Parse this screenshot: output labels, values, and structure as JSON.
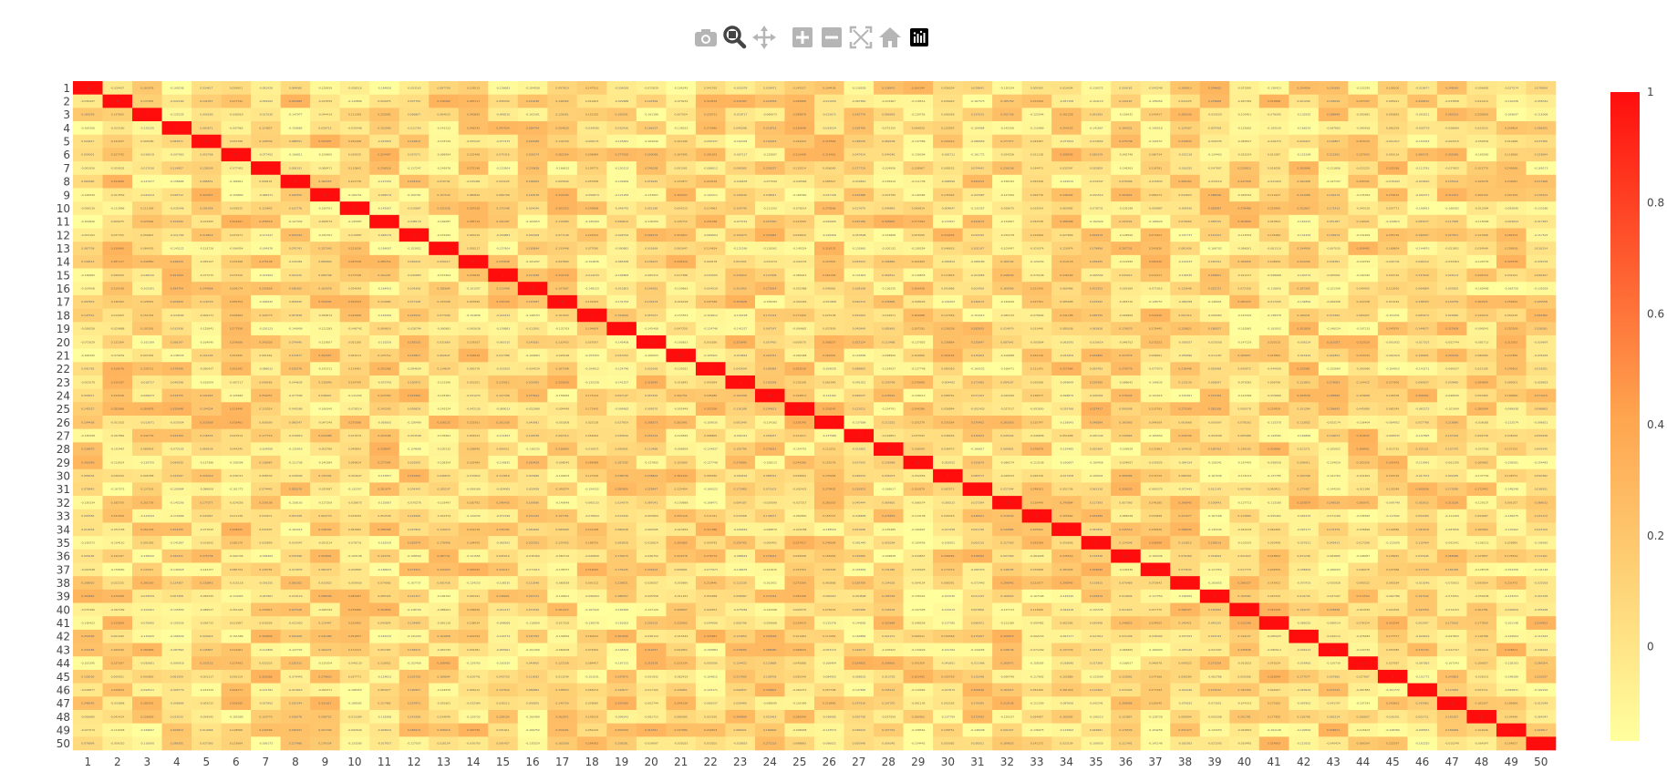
{
  "modebar": {
    "buttons": [
      {
        "name": "camera-icon",
        "title": "Download plot as a png",
        "active": false
      },
      {
        "name": "zoom-icon",
        "title": "Zoom",
        "active": true
      },
      {
        "name": "pan-icon",
        "title": "Pan",
        "active": false
      },
      {
        "name": "zoom-in-icon",
        "title": "Zoom in",
        "active": false
      },
      {
        "name": "zoom-out-icon",
        "title": "Zoom out",
        "active": false
      },
      {
        "name": "autoscale-icon",
        "title": "Autoscale",
        "active": false
      },
      {
        "name": "home-icon",
        "title": "Reset axes",
        "active": false
      },
      {
        "name": "plotly-logo-icon",
        "title": "Produced with Plotly",
        "active": false
      }
    ],
    "colors": {
      "inactive": "#b5b5b5",
      "active": "#444444",
      "logo": "#000000"
    }
  },
  "chart_data": {
    "type": "heatmap",
    "title": "",
    "xlabel": "",
    "ylabel": "",
    "n": 50,
    "x": [
      "1",
      "2",
      "3",
      "4",
      "5",
      "6",
      "7",
      "8",
      "9",
      "10",
      "11",
      "12",
      "13",
      "14",
      "15",
      "16",
      "17",
      "18",
      "19",
      "20",
      "21",
      "22",
      "23",
      "24",
      "25",
      "26",
      "27",
      "28",
      "29",
      "30",
      "31",
      "32",
      "33",
      "34",
      "35",
      "36",
      "37",
      "38",
      "39",
      "40",
      "41",
      "42",
      "43",
      "44",
      "45",
      "46",
      "47",
      "48",
      "49",
      "50"
    ],
    "y": [
      "1",
      "2",
      "3",
      "4",
      "5",
      "6",
      "7",
      "8",
      "9",
      "10",
      "11",
      "12",
      "13",
      "14",
      "15",
      "16",
      "17",
      "18",
      "19",
      "20",
      "21",
      "22",
      "23",
      "24",
      "25",
      "26",
      "27",
      "28",
      "29",
      "30",
      "31",
      "32",
      "33",
      "34",
      "35",
      "36",
      "37",
      "38",
      "39",
      "40",
      "41",
      "42",
      "43",
      "44",
      "45",
      "46",
      "47",
      "48",
      "49",
      "50"
    ],
    "y_order": "top-to-bottom",
    "diagonal_value": 1,
    "off_diagonal_range": [
      -0.17,
      0.33
    ],
    "off_diagonal_note": "cell values not individually legible; estimated uniformly within range",
    "zmin": -0.17,
    "zmax": 1,
    "colorscale": [
      [
        0,
        "#ffff9e"
      ],
      [
        0.5,
        "#fea54f"
      ],
      [
        1,
        "#ff0d0d"
      ]
    ],
    "colorbar": {
      "ticks": [
        0,
        0.2,
        0.4,
        0.6,
        0.8,
        1
      ],
      "tick_labels": [
        "0",
        "0.2",
        "0.4",
        "0.6",
        "0.8",
        "1"
      ],
      "position": "right"
    },
    "cell_labels_shown": true
  }
}
